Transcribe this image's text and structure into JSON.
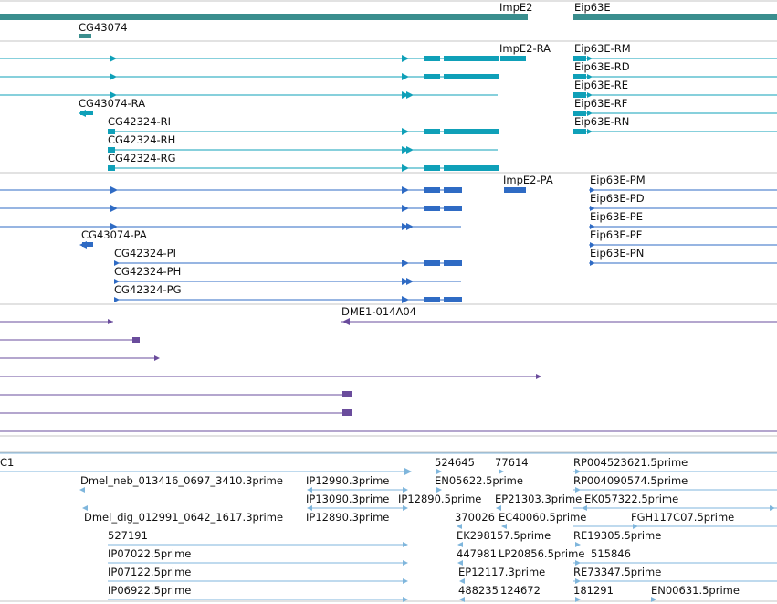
{
  "colors": {
    "gene": "#3a8e8e",
    "transcript": "#0fa0b8",
    "cds": "#2f6bc4",
    "clone": "#6a4c9c",
    "est": "#7fb6dc",
    "divider": "#c4c4c4"
  },
  "tracks": {
    "genes": {
      "labels": [
        "ImpE2",
        "Eip63E",
        "CG43074"
      ]
    },
    "transcripts": {
      "labels": [
        "ImpE2-RA",
        "Eip63E-RM",
        "Eip63E-RD",
        "Eip63E-RE",
        "CG43074-RA",
        "Eip63E-RF",
        "CG42324-RI",
        "Eip63E-RN",
        "CG42324-RH",
        "CG42324-RG"
      ]
    },
    "proteins": {
      "labels": [
        "ImpE2-PA",
        "Eip63E-PM",
        "Eip63E-PD",
        "Eip63E-PE",
        "CG43074-PA",
        "Eip63E-PF",
        "CG42324-PI",
        "Eip63E-PN",
        "CG42324-PH",
        "CG42324-PG"
      ]
    },
    "clones": {
      "labels": [
        "DME1-014A04"
      ]
    },
    "ests": {
      "labels": [
        "C1",
        "524645",
        "77614",
        "RP004523621.5prime",
        "EN05622.5prime",
        "RP004090574.5prime",
        "Dmel_neb_013416_0697_3410.3prime",
        "IP12990.3prime",
        "IP13090.3prime",
        "IP12890.5prime",
        "EP21303.3prime",
        "EK057322.5prime",
        "Dmel_dig_012991_0642_1617.3prime",
        "IP12890.3prime",
        "370026",
        "EC40060.5prime",
        "FGH117C07.5prime",
        "527191",
        "EK298157.5prime",
        "RE19305.5prime",
        "IP07022.5prime",
        "447981",
        "LP20856.5prime",
        "515846",
        "IP07122.5prime",
        "EP12117.3prime",
        "RE73347.5prime",
        "IP06922.5prime",
        "488235",
        "124672",
        "181291",
        "EN00631.5prime"
      ]
    }
  }
}
